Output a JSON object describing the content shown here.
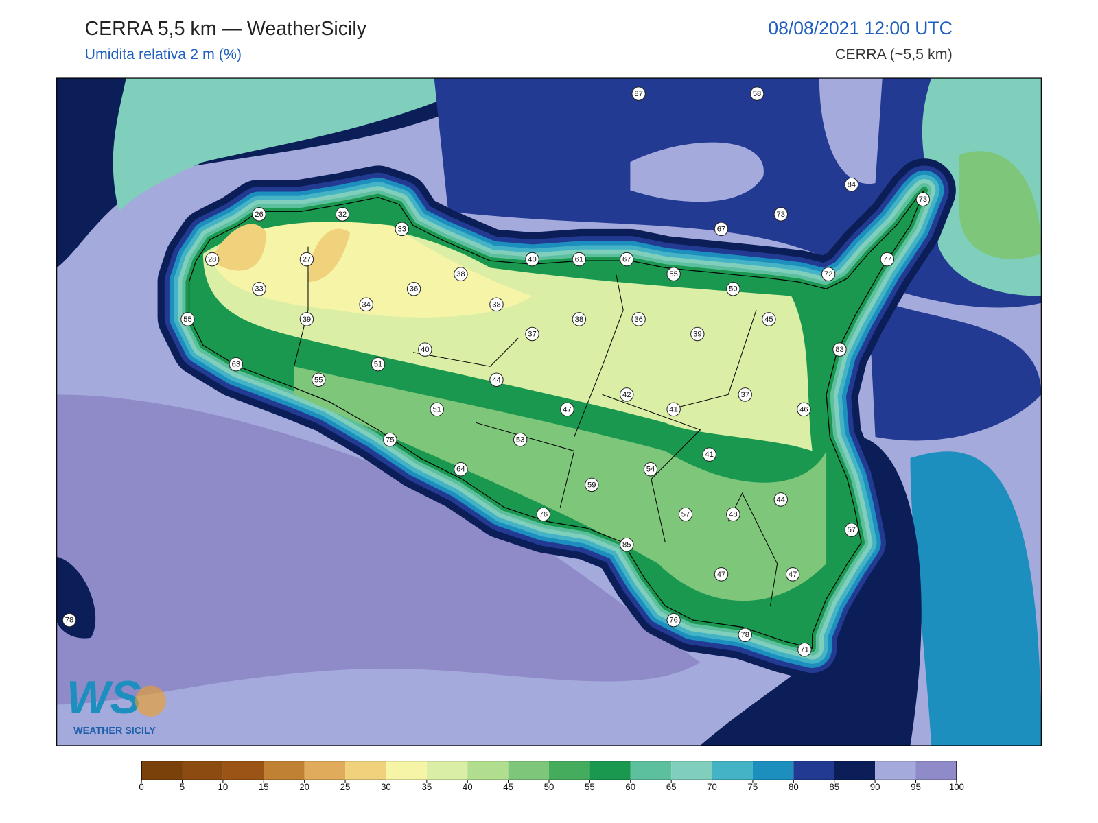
{
  "header": {
    "title": "CERRA 5,5 km — WeatherSicily",
    "subtitle": "Umidita relativa 2 m (%)",
    "datetime": "08/08/2021 12:00 UTC",
    "model": "CERRA (~5,5 km)"
  },
  "stations": {
    "values": [
      26,
      32,
      33,
      28,
      27,
      33,
      34,
      36,
      38,
      38,
      40,
      61,
      67,
      55,
      50,
      55,
      39,
      40,
      37,
      38,
      36,
      39,
      45,
      72,
      77,
      73,
      84,
      73,
      67,
      87,
      58,
      83,
      63,
      55,
      51,
      44,
      42,
      47,
      41,
      37,
      46,
      51,
      53,
      75,
      64,
      59,
      54,
      41,
      44,
      57,
      48,
      76,
      85,
      57,
      47,
      47,
      76,
      78,
      71,
      78
    ]
  },
  "colorbar": {
    "ticks": [
      0,
      5,
      10,
      15,
      20,
      25,
      30,
      35,
      40,
      45,
      50,
      55,
      60,
      65,
      70,
      75,
      80,
      85,
      90,
      95,
      100
    ],
    "colors": [
      "#7a420a",
      "#8c4b10",
      "#9a5516",
      "#c08232",
      "#e0ac5c",
      "#f0d27c",
      "#f6f4a6",
      "#dbeea6",
      "#b0de8e",
      "#7dc67a",
      "#45ab5d",
      "#1b9850",
      "#5cbf9d",
      "#7fcfbc",
      "#43b3c5",
      "#1d8fbf",
      "#233a92",
      "#0c1e58",
      "#a5aadc",
      "#8f8bc9"
    ]
  },
  "logo": {
    "mark": "WS",
    "name": "WEATHER SICILY"
  }
}
